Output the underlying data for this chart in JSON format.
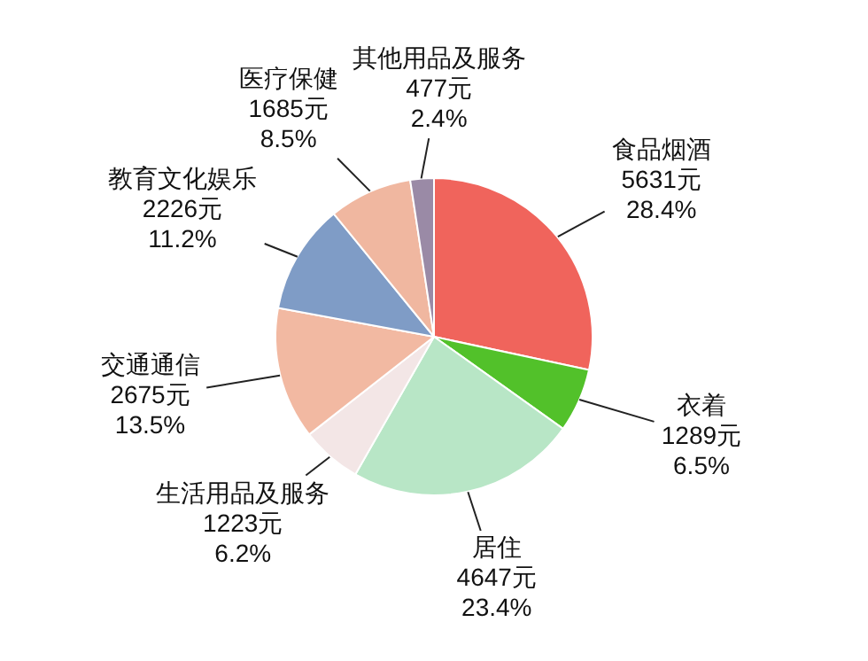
{
  "chart_data": {
    "type": "pie",
    "categories": [
      "食品烟酒",
      "衣着",
      "居住",
      "生活用品及服务",
      "交通通信",
      "教育文化娱乐",
      "医疗保健",
      "其他用品及服务"
    ],
    "values": [
      5631,
      1289,
      4647,
      1223,
      2675,
      2226,
      1685,
      477
    ],
    "value_labels": [
      "5631元\n28.4%",
      "1289元\n6.5%",
      "4647元\n23.4%",
      "1223元\n6.2%",
      "2675元\n13.5%",
      "2226元\n11.2%",
      "1685元\n8.5%",
      "477元\n2.4%"
    ],
    "colors": [
      "#f0645c",
      "#52c12a",
      "#b8e6c6",
      "#f3e6e6",
      "#f2b9a2",
      "#7f9cc6",
      "#f0b7a0",
      "#9a8aa6"
    ],
    "legend": false
  }
}
